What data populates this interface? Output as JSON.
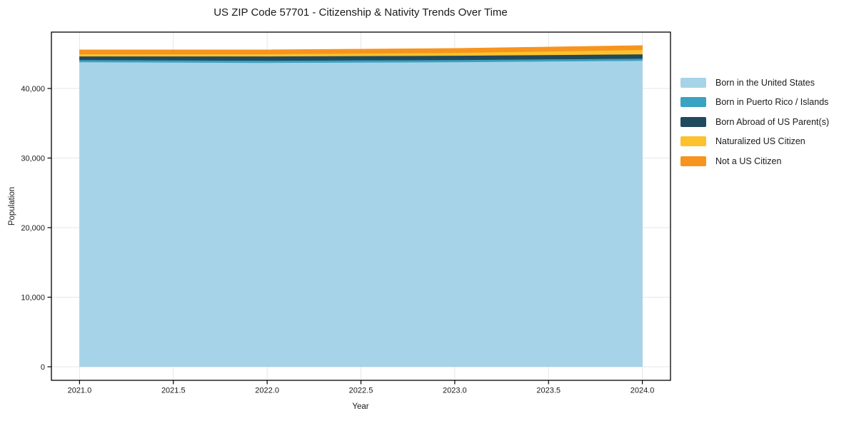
{
  "chart_data": {
    "type": "area",
    "stacked": true,
    "title": "US ZIP Code 57701 - Citizenship & Nativity Trends Over Time",
    "xlabel": "Year",
    "ylabel": "Population",
    "x": [
      2021,
      2022,
      2023,
      2024
    ],
    "series": [
      {
        "name": "Born in the United States",
        "color": "#a7d3e8",
        "values": [
          43800,
          43700,
          43800,
          44000
        ]
      },
      {
        "name": "Born in Puerto Rico / Islands",
        "color": "#3aa2c2",
        "values": [
          310,
          310,
          310,
          310
        ]
      },
      {
        "name": "Born Abroad of US Parent(s)",
        "color": "#204a5d",
        "values": [
          520,
          620,
          620,
          620
        ]
      },
      {
        "name": "Naturalized US Citizen",
        "color": "#fcc22d",
        "values": [
          310,
          310,
          410,
          620
        ]
      },
      {
        "name": "Not a US Citizen",
        "color": "#f7941e",
        "values": [
          620,
          620,
          620,
          620
        ]
      }
    ],
    "xlim": [
      2020.85,
      2024.15
    ],
    "ylim": [
      -1950,
      48100
    ],
    "xticks": {
      "values": [
        2021.0,
        2021.5,
        2022.0,
        2022.5,
        2023.0,
        2023.5,
        2024.0
      ],
      "labels": [
        "2021.0",
        "2021.5",
        "2022.0",
        "2022.5",
        "2023.0",
        "2023.5",
        "2024.0"
      ]
    },
    "yticks": {
      "values": [
        0,
        10000,
        20000,
        30000,
        40000
      ],
      "labels": [
        "0",
        "10,000",
        "20,000",
        "30,000",
        "40,000"
      ]
    },
    "grid": true,
    "grid_color": "#e7e7e7",
    "spine_color": "#000000",
    "legend_position": "right-outside"
  }
}
